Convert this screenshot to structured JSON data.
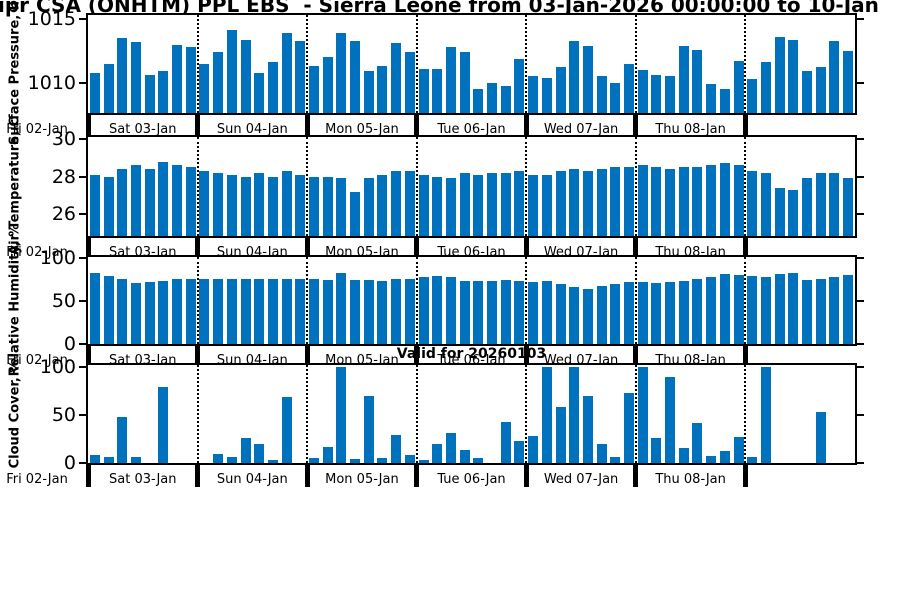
{
  "title": "ipr CSA (ONHTM) PPL EBS  - Sierra Leone from 03-Jan-2026 00:00:00 to 10-Jan",
  "valid_label": "Valid for 20260103",
  "colors": {
    "bar": "#0072BD",
    "axis": "#000000"
  },
  "x_axis": {
    "prelabel": "Fri 02-Jan",
    "day_labels": [
      "Sat 03-Jan",
      "Sun 04-Jan",
      "Mon 05-Jan",
      "Tue 06-Jan",
      "Wed 07-Jan",
      "Thu 08-Jan"
    ],
    "bars_per_day": 8,
    "num_days": 7,
    "last_day_unlabeled": true
  },
  "chart_data": [
    {
      "type": "bar",
      "ylabel": "Surface Pressure, hPa",
      "yticks": [
        1010,
        1015
      ],
      "ylim": [
        1007.6,
        1015.35
      ],
      "grid": "vertical-day-separators-dotted",
      "legend": "none",
      "values": [
        1010.8,
        1011.5,
        1013.5,
        1013.2,
        1010.6,
        1010.9,
        1013.0,
        1012.8,
        1011.5,
        1012.4,
        1014.2,
        1013.4,
        1010.8,
        1011.6,
        1013.9,
        1013.3,
        1011.3,
        1012.0,
        1013.9,
        1013.3,
        1010.9,
        1011.3,
        1013.1,
        1012.4,
        1011.1,
        1011.1,
        1012.8,
        1012.4,
        1009.5,
        1010.0,
        1009.7,
        1011.9,
        1010.5,
        1010.4,
        1011.2,
        1013.3,
        1012.9,
        1010.5,
        1010.0,
        1011.5,
        1011.0,
        1010.6,
        1010.5,
        1012.9,
        1012.6,
        1009.9,
        1009.5,
        1011.7,
        1010.3,
        1011.6,
        1013.6,
        1013.4,
        1010.9,
        1011.2,
        1013.3,
        1012.5
      ]
    },
    {
      "type": "bar",
      "ylabel": "Air Temperature, C",
      "yticks": [
        26,
        28,
        30
      ],
      "ylim": [
        24.85,
        30.1
      ],
      "grid": "vertical-day-separators-dotted",
      "legend": "none",
      "values": [
        28.1,
        28.0,
        28.4,
        28.6,
        28.4,
        28.8,
        28.6,
        28.5,
        28.3,
        28.2,
        28.1,
        28.0,
        28.2,
        28.0,
        28.3,
        28.1,
        28.0,
        28.0,
        27.9,
        27.2,
        27.9,
        28.1,
        28.3,
        28.3,
        28.1,
        28.0,
        27.9,
        28.2,
        28.1,
        28.2,
        28.2,
        28.3,
        28.1,
        28.1,
        28.3,
        28.4,
        28.3,
        28.4,
        28.5,
        28.5,
        28.6,
        28.5,
        28.4,
        28.5,
        28.5,
        28.6,
        28.7,
        28.6,
        28.3,
        28.2,
        27.4,
        27.3,
        27.9,
        28.2,
        28.2,
        27.9
      ]
    },
    {
      "type": "bar",
      "ylabel": "Relative Humidity, %",
      "yticks": [
        0,
        50,
        100
      ],
      "ylim": [
        0,
        101
      ],
      "grid": "vertical-day-separators-dotted",
      "legend": "none",
      "values": [
        82,
        79,
        75,
        71,
        72,
        73,
        75,
        76,
        76,
        75,
        76,
        76,
        75,
        76,
        75,
        75,
        76,
        74,
        83,
        74,
        74,
        73,
        75,
        76,
        78,
        79,
        78,
        73,
        73,
        73,
        74,
        73,
        72,
        73,
        70,
        66,
        64,
        67,
        70,
        72,
        72,
        71,
        72,
        73,
        75,
        78,
        81,
        80,
        79,
        78,
        81,
        82,
        74,
        75,
        78,
        80
      ]
    },
    {
      "type": "bar",
      "ylabel": "Cloud Cover, %",
      "yticks": [
        0,
        50,
        100
      ],
      "ylim": [
        0,
        102
      ],
      "grid": "vertical-day-separators-dotted",
      "legend": "none",
      "values": [
        8,
        6,
        48,
        6,
        0,
        79,
        0,
        0,
        0,
        9,
        6,
        26,
        20,
        3,
        69,
        0,
        5,
        17,
        100,
        4,
        70,
        5,
        29,
        8,
        3,
        20,
        31,
        14,
        5,
        0,
        43,
        23,
        28,
        100,
        58,
        100,
        70,
        20,
        6,
        73,
        100,
        26,
        90,
        16,
        42,
        7,
        13,
        27,
        6,
        100,
        0,
        0,
        0,
        53,
        0,
        0
      ]
    }
  ]
}
